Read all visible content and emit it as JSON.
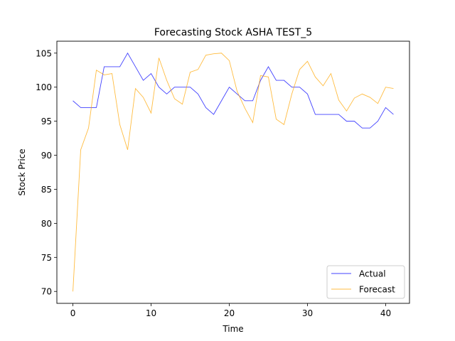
{
  "chart_data": {
    "type": "line",
    "title": "Forecasting Stock ASHA TEST_5",
    "xlabel": "Time",
    "ylabel": "Stock Price",
    "xlim": [
      -2.05,
      43.05
    ],
    "ylim": [
      68.25,
      106.75
    ],
    "xticks": [
      0,
      10,
      20,
      30,
      40
    ],
    "yticks": [
      70,
      75,
      80,
      85,
      90,
      95,
      100,
      105
    ],
    "grid": false,
    "legend_position": "lower-right",
    "series": [
      {
        "name": "Actual",
        "color": "#0000ff",
        "x": [
          0,
          1,
          2,
          3,
          4,
          5,
          6,
          7,
          8,
          9,
          10,
          11,
          12,
          13,
          14,
          15,
          16,
          17,
          18,
          19,
          20,
          21,
          22,
          23,
          24,
          25,
          26,
          27,
          28,
          29,
          30,
          31,
          32,
          33,
          34,
          35,
          36,
          37,
          38,
          39,
          40,
          41
        ],
        "values": [
          98,
          97,
          97,
          97,
          103,
          103,
          103,
          105,
          103,
          101,
          102,
          100,
          99,
          100,
          100,
          100,
          99,
          97,
          96,
          98,
          100,
          99,
          98,
          98,
          101,
          103,
          101,
          101,
          100,
          100,
          99,
          96,
          96,
          96,
          96,
          95,
          95,
          94,
          94,
          95,
          97,
          96
        ]
      },
      {
        "name": "Forecast",
        "color": "#ffa500",
        "x": [
          0,
          1,
          2,
          3,
          4,
          5,
          6,
          7,
          8,
          9,
          10,
          11,
          12,
          13,
          14,
          15,
          16,
          17,
          18,
          19,
          20,
          21,
          22,
          23,
          24,
          25,
          26,
          27,
          28,
          29,
          30,
          31,
          32,
          33,
          34,
          35,
          36,
          37,
          38,
          39,
          40,
          41
        ],
        "values": [
          70,
          90.8,
          94,
          102.5,
          101.8,
          102,
          94.5,
          90.8,
          99.8,
          98.5,
          96.2,
          104.3,
          101,
          98.3,
          97.5,
          102.2,
          102.6,
          104.7,
          104.9,
          105,
          103.9,
          99.4,
          96.9,
          94.8,
          101.7,
          101.5,
          95.3,
          94.5,
          99,
          102.6,
          103.8,
          101.5,
          100.2,
          102,
          98.1,
          96.5,
          98.4,
          99,
          98.5,
          97.6,
          100,
          99.8
        ]
      }
    ]
  }
}
